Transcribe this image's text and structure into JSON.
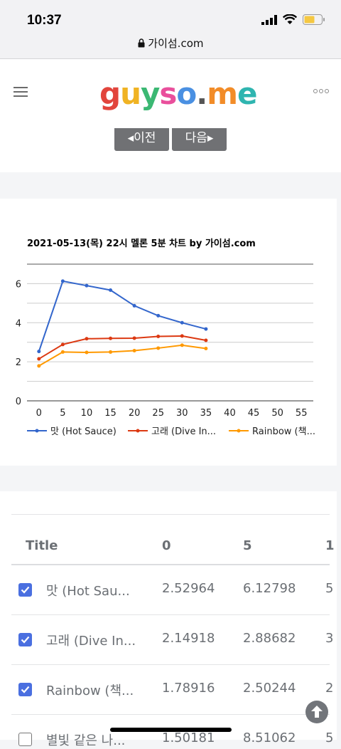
{
  "status": {
    "time": "10:37"
  },
  "browser": {
    "url": "가이섬.com"
  },
  "site": {
    "logo": "guyso.me"
  },
  "nav": {
    "prev_label": "이전",
    "next_label": "다음"
  },
  "chart_data": {
    "type": "line",
    "title": "2021-05-13(목) 22시 멜론 5분 차트 by 가이섬.com",
    "x": [
      0,
      5,
      10,
      15,
      20,
      25,
      30,
      35
    ],
    "x_ticks": [
      "0",
      "5",
      "10",
      "15",
      "20",
      "25",
      "30",
      "35",
      "40",
      "45",
      "50",
      "55"
    ],
    "y_ticks": [
      "0",
      "2",
      "4",
      "6"
    ],
    "ylim": [
      0,
      7
    ],
    "xlim": [
      -2.5,
      57.5
    ],
    "legend_position": "bottom",
    "series": [
      {
        "name": "맛 (Hot Sauce)",
        "color": "#3366cc",
        "values": [
          2.52964,
          6.12798,
          5.9,
          5.67,
          4.87,
          4.36,
          4.0,
          3.68
        ]
      },
      {
        "name": "고래 (Dive In...",
        "color": "#dc3912",
        "values": [
          2.14918,
          2.88682,
          3.18,
          3.2,
          3.21,
          3.3,
          3.32,
          3.1
        ]
      },
      {
        "name": "Rainbow (책...",
        "color": "#ff9900",
        "values": [
          1.78916,
          2.50244,
          2.48,
          2.5,
          2.57,
          2.7,
          2.85,
          2.68
        ]
      }
    ]
  },
  "table": {
    "headers": [
      "Title",
      "0",
      "5",
      "1"
    ],
    "rows": [
      {
        "checked": true,
        "title": "맛 (Hot Sau...",
        "v0": "2.52964",
        "v5": "6.12798",
        "next": "5"
      },
      {
        "checked": true,
        "title": "고래 (Dive In...",
        "v0": "2.14918",
        "v5": "2.88682",
        "next": "3"
      },
      {
        "checked": true,
        "title": "Rainbow (책...",
        "v0": "1.78916",
        "v5": "2.50244",
        "next": "2"
      },
      {
        "checked": false,
        "title": "별빛 같은 나...",
        "v0": "1.50181",
        "v5": "8.51062",
        "next": "5"
      }
    ]
  }
}
